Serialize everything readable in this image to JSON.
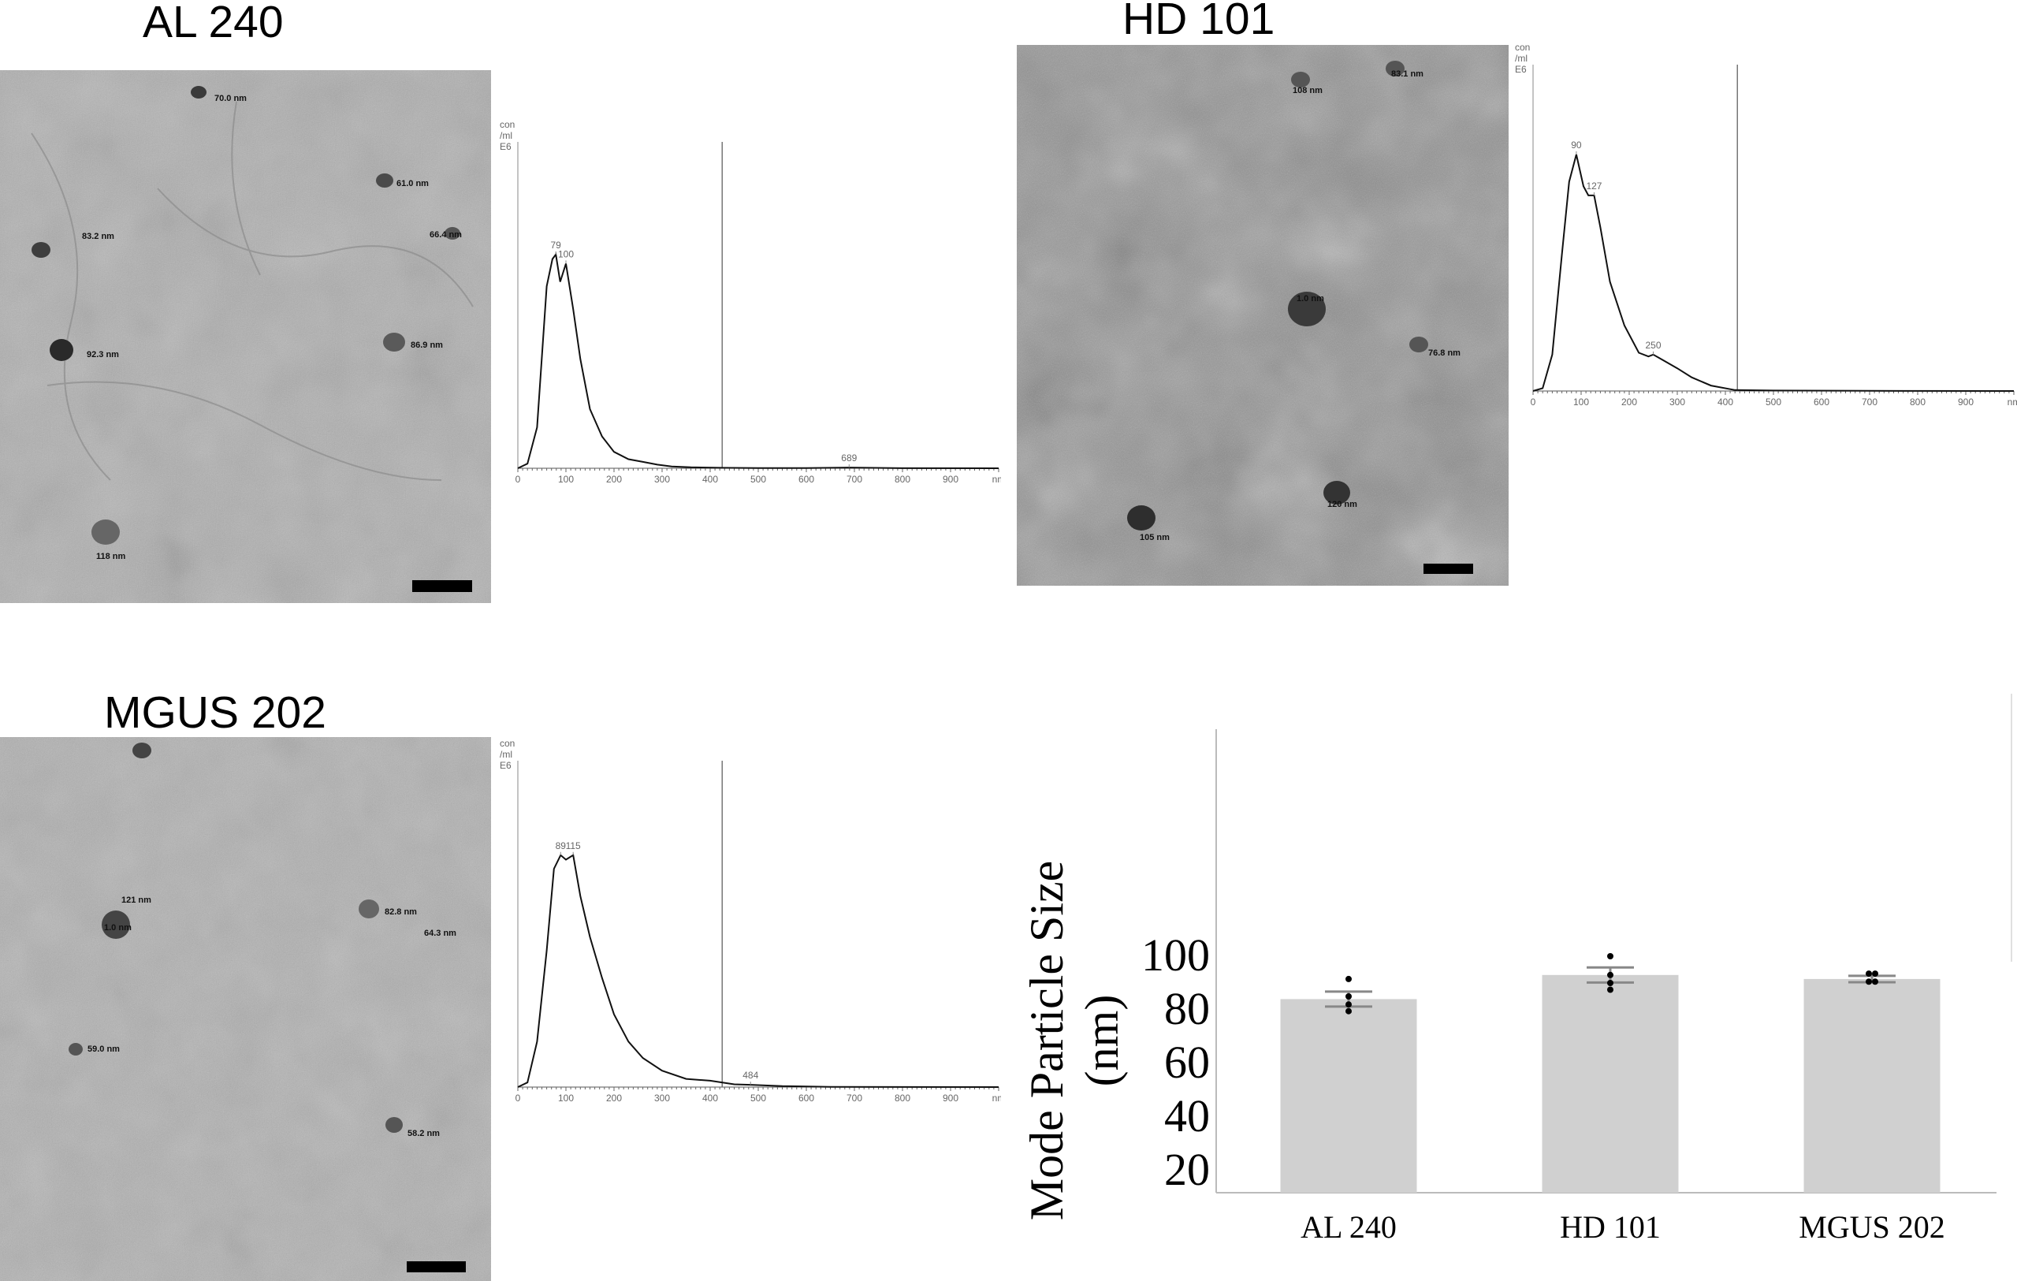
{
  "panels": [
    {
      "id": "al240",
      "title": "AL 240",
      "tem_labels": [
        "70.0 nm",
        "61.0 nm",
        "83.2 nm",
        "66.4 nm",
        "92.3 nm",
        "86.9 nm",
        "118 nm"
      ],
      "nta": {
        "y_label": [
          "con",
          "/ml",
          "E6"
        ],
        "x_ticks": [
          "0",
          "100",
          "200",
          "300",
          "400",
          "500",
          "600",
          "700",
          "800",
          "900",
          "nm"
        ],
        "peak_labels": [
          "79",
          "100",
          "689"
        ]
      }
    },
    {
      "id": "hd101",
      "title": "HD 101",
      "tem_labels": [
        "108 nm",
        "83.1 nm",
        "1.0 nm",
        "76.8 nm",
        "120 nm",
        "105 nm"
      ],
      "nta": {
        "y_label": [
          "con",
          "/ml",
          "E6"
        ],
        "x_ticks": [
          "0",
          "100",
          "200",
          "300",
          "400",
          "500",
          "600",
          "700",
          "800",
          "900",
          "nm"
        ],
        "peak_labels": [
          "90",
          "127",
          "250"
        ]
      }
    },
    {
      "id": "mgus202",
      "title": "MGUS 202",
      "tem_labels": [
        "121 nm",
        "1.0 nm",
        "82.8 nm",
        "64.3 nm",
        "59.0 nm",
        "58.2 nm"
      ],
      "nta": {
        "y_label": [
          "con",
          "/ml",
          "E6"
        ],
        "x_ticks": [
          "0",
          "100",
          "200",
          "300",
          "400",
          "500",
          "600",
          "700",
          "800",
          "900",
          "nm"
        ],
        "peak_labels": [
          "89",
          "115",
          "484"
        ]
      }
    }
  ],
  "chart_data": [
    {
      "type": "line",
      "panel": "AL 240",
      "xlabel": "nm",
      "ylabel": "con /ml E6",
      "xlim": [
        0,
        1000
      ],
      "x": [
        0,
        20,
        40,
        60,
        72,
        79,
        88,
        100,
        115,
        130,
        150,
        175,
        200,
        230,
        260,
        290,
        320,
        360,
        420,
        500,
        600,
        689,
        800,
        1000
      ],
      "y": [
        0,
        5,
        45,
        200,
        230,
        235,
        205,
        225,
        175,
        120,
        65,
        35,
        18,
        10,
        7,
        4,
        2,
        1,
        0.5,
        0.3,
        0.2,
        0.8,
        0.1,
        0
      ],
      "annotations": [
        "79",
        "100",
        "689"
      ]
    },
    {
      "type": "line",
      "panel": "HD 101",
      "xlabel": "nm",
      "ylabel": "con /ml E6",
      "xlim": [
        0,
        1000
      ],
      "x": [
        0,
        20,
        40,
        60,
        75,
        90,
        105,
        115,
        127,
        140,
        160,
        190,
        220,
        240,
        250,
        270,
        300,
        330,
        370,
        420,
        500,
        700,
        1000
      ],
      "y": [
        0,
        3,
        40,
        150,
        230,
        260,
        225,
        215,
        215,
        180,
        120,
        72,
        42,
        38,
        40,
        34,
        25,
        15,
        6,
        1,
        0.5,
        0.2,
        0
      ],
      "annotations": [
        "90",
        "127",
        "250"
      ]
    },
    {
      "type": "line",
      "panel": "MGUS 202",
      "xlabel": "nm",
      "ylabel": "con /ml E6",
      "xlim": [
        0,
        1000
      ],
      "x": [
        0,
        20,
        40,
        60,
        75,
        89,
        100,
        115,
        130,
        150,
        175,
        200,
        230,
        260,
        300,
        350,
        400,
        450,
        484,
        550,
        650,
        800,
        1000
      ],
      "y": [
        0,
        5,
        50,
        150,
        240,
        255,
        250,
        255,
        210,
        165,
        120,
        80,
        50,
        32,
        18,
        9,
        7,
        3,
        2.5,
        1,
        0.3,
        0.1,
        0
      ],
      "annotations": [
        "89",
        "115",
        "484"
      ]
    },
    {
      "type": "bar",
      "categories": [
        "AL 240",
        "HD 101",
        "MGUS 202"
      ],
      "values": [
        84,
        93,
        91.5
      ],
      "errors": [
        2.8,
        2.8,
        1.2
      ],
      "points": [
        [
          91.5,
          85,
          82,
          79.5
        ],
        [
          100,
          93,
          90,
          87.5
        ],
        [
          93.5,
          93.5,
          90.5,
          90.5
        ]
      ],
      "ylabel": "Mode Particle Size (nm)",
      "xlabel": "",
      "yticks": [
        "20",
        "40",
        "60",
        "80",
        "100"
      ],
      "ylim": [
        0,
        110
      ],
      "bar_color": "#d0d0d0"
    }
  ]
}
